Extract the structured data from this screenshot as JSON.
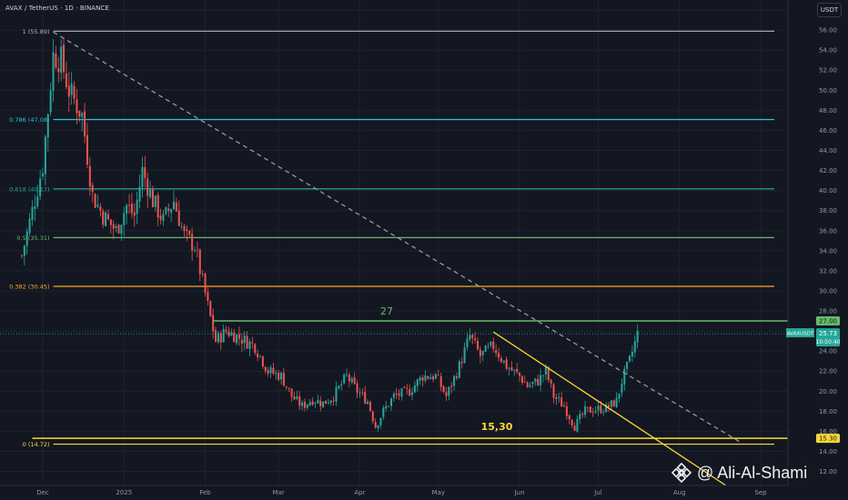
{
  "header": {
    "symbol_line": "AVAX / TetherUS · 1D · BINANCE"
  },
  "currency_badge": "USDT",
  "watermark": {
    "text": "@ Ali-Al-Shami",
    "logo": "binance-logo"
  },
  "colors": {
    "background": "#131722",
    "up_candle": "#26a69a",
    "down_candle": "#ef5350",
    "fib_1": "#b2b5be",
    "fib_0786": "#26c6da",
    "fib_0618": "#26a69a",
    "fib_05": "#66bb6a",
    "fib_0382": "#ffa726",
    "fib_0": "#fdd835",
    "level_27": "#66bb6a",
    "trendline": "#fdd835",
    "dashed_trendline": "#9598a1"
  },
  "chart_data": {
    "type": "candlestick",
    "title": "AVAX / TetherUS · 1D · BINANCE",
    "y_axis": {
      "unit": "USDT",
      "range": [
        10.6,
        59.0
      ],
      "ticks": [
        "58.00",
        "56.00",
        "54.00",
        "52.00",
        "50.00",
        "48.00",
        "46.00",
        "44.00",
        "42.00",
        "40.00",
        "38.00",
        "36.00",
        "34.00",
        "32.00",
        "30.00",
        "28.00",
        "26.00",
        "24.00",
        "22.00",
        "20.00",
        "18.00",
        "16.00",
        "14.00",
        "12.00"
      ]
    },
    "x_axis": {
      "ticks": [
        {
          "label": "Dec",
          "date": "2024-12-01"
        },
        {
          "label": "2025",
          "date": "2025-01-01"
        },
        {
          "label": "Feb",
          "date": "2025-02-01"
        },
        {
          "label": "Mar",
          "date": "2025-03-01"
        },
        {
          "label": "Apr",
          "date": "2025-04-01"
        },
        {
          "label": "May",
          "date": "2025-05-01"
        },
        {
          "label": "Jun",
          "date": "2025-06-01"
        },
        {
          "label": "Jul",
          "date": "2025-07-01"
        },
        {
          "label": "Aug",
          "date": "2025-08-01"
        },
        {
          "label": "Sep",
          "date": "2025-09-01"
        }
      ]
    },
    "fib_levels": [
      {
        "label": "1 (55.89)",
        "value": 55.89,
        "color": "#b2b5be"
      },
      {
        "label": "0.786 (47.08)",
        "value": 47.08,
        "color": "#26c6da"
      },
      {
        "label": "0.618 (40.17)",
        "value": 40.17,
        "color": "#26a69a"
      },
      {
        "label": "0.5 (35.31)",
        "value": 35.31,
        "color": "#66bb6a"
      },
      {
        "label": "0.382 (30.45)",
        "value": 30.45,
        "color": "#ffa726"
      },
      {
        "label": "0 (14.72)",
        "value": 14.72,
        "color": "#fdd835"
      }
    ],
    "horizontal_levels": [
      {
        "label": "27",
        "value": 27.0,
        "start": "2025-02-04",
        "color": "#66bb6a"
      },
      {
        "label": "15,30",
        "value": 15.3,
        "start": "2024-11-27",
        "color": "#fdd835"
      }
    ],
    "trendlines": [
      {
        "name": "dashed",
        "from": {
          "date": "2024-12-05",
          "value": 55.8
        },
        "to": {
          "date": "2025-08-25",
          "value": 14.8
        },
        "style": "dashed",
        "color": "#9598a1"
      },
      {
        "name": "solid",
        "from": {
          "date": "2025-05-22",
          "value": 25.9
        },
        "to": {
          "date": "2025-08-28",
          "value": 9.0
        },
        "style": "solid",
        "color": "#fdd835"
      }
    ],
    "price_labels": [
      {
        "text": "27.00",
        "value": 27.0,
        "color": "#66bb6a"
      },
      {
        "text": "15.30",
        "value": 15.3,
        "color": "#fdd835"
      }
    ],
    "last_price": {
      "symbol": "AVAXUSDT",
      "price": "25.73",
      "countdown": "10:50:40",
      "value": 25.73
    },
    "ohlc_anchors": [
      [
        "2024-11-23",
        33.5
      ],
      [
        "2024-12-01",
        42.5
      ],
      [
        "2024-12-05",
        53.5
      ],
      [
        "2024-12-08",
        53
      ],
      [
        "2024-12-11",
        50
      ],
      [
        "2024-12-16",
        47.5
      ],
      [
        "2024-12-20",
        39.5
      ],
      [
        "2024-12-24",
        37.5
      ],
      [
        "2024-12-29",
        36
      ],
      [
        "2025-01-02",
        38.5
      ],
      [
        "2025-01-05",
        37.5
      ],
      [
        "2025-01-08",
        42
      ],
      [
        "2025-01-12",
        39
      ],
      [
        "2025-01-16",
        37
      ],
      [
        "2025-01-20",
        39
      ],
      [
        "2025-01-24",
        35.5
      ],
      [
        "2025-01-28",
        34.5
      ],
      [
        "2025-02-02",
        28.5
      ],
      [
        "2025-02-05",
        25
      ],
      [
        "2025-02-09",
        26
      ],
      [
        "2025-02-15",
        25.2
      ],
      [
        "2025-02-20",
        24.5
      ],
      [
        "2025-02-25",
        22
      ],
      [
        "2025-03-02",
        21.5
      ],
      [
        "2025-03-06",
        19.5
      ],
      [
        "2025-03-10",
        18.5
      ],
      [
        "2025-03-14",
        19.2
      ],
      [
        "2025-03-18",
        18.8
      ],
      [
        "2025-03-22",
        19.5
      ],
      [
        "2025-03-27",
        21.5
      ],
      [
        "2025-03-31",
        20
      ],
      [
        "2025-04-04",
        19
      ],
      [
        "2025-04-07",
        16.5
      ],
      [
        "2025-04-10",
        18
      ],
      [
        "2025-04-14",
        19.5
      ],
      [
        "2025-04-20",
        20
      ],
      [
        "2025-04-25",
        21.5
      ],
      [
        "2025-04-30",
        21.5
      ],
      [
        "2025-05-04",
        19.5
      ],
      [
        "2025-05-09",
        22.5
      ],
      [
        "2025-05-13",
        25.5
      ],
      [
        "2025-05-17",
        23.5
      ],
      [
        "2025-05-22",
        24.5
      ],
      [
        "2025-05-27",
        22.5
      ],
      [
        "2025-06-01",
        21.5
      ],
      [
        "2025-06-04",
        20.5
      ],
      [
        "2025-06-08",
        21
      ],
      [
        "2025-06-11",
        22
      ],
      [
        "2025-06-14",
        19.5
      ],
      [
        "2025-06-18",
        18.5
      ],
      [
        "2025-06-22",
        16.5
      ],
      [
        "2025-06-26",
        18
      ],
      [
        "2025-06-30",
        18.2
      ],
      [
        "2025-07-04",
        18.3
      ],
      [
        "2025-07-08",
        19
      ],
      [
        "2025-07-10",
        21
      ],
      [
        "2025-07-13",
        23
      ],
      [
        "2025-07-16",
        25.7
      ]
    ]
  }
}
